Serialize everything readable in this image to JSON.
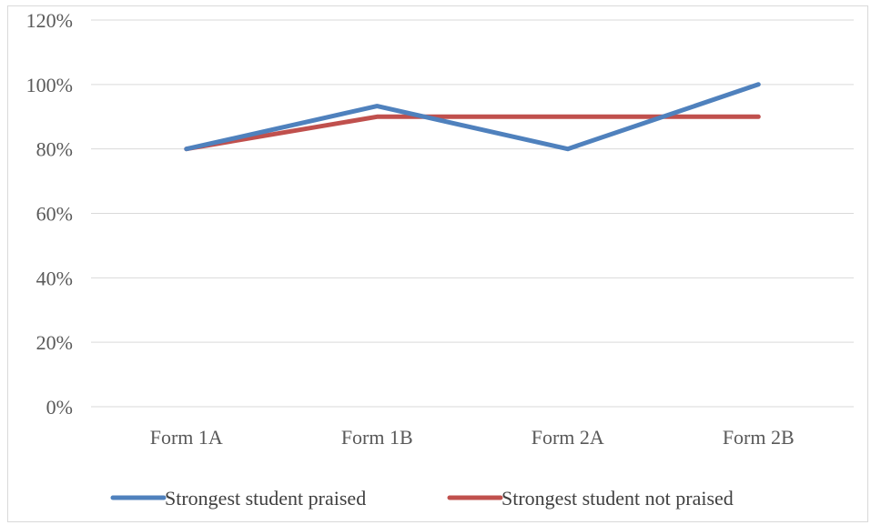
{
  "chart_data": {
    "type": "line",
    "title": "",
    "xlabel": "",
    "ylabel": "",
    "categories": [
      "Form 1A",
      "Form 1B",
      "Form 2A",
      "Form 2B"
    ],
    "ylim": [
      0,
      1.2
    ],
    "y_ticks": [
      0,
      0.2,
      0.4,
      0.6,
      0.8,
      1.0,
      1.2
    ],
    "y_tick_labels": [
      "0%",
      "20%",
      "40%",
      "60%",
      "80%",
      "100%",
      "120%"
    ],
    "grid": true,
    "legend_position": "bottom",
    "series": [
      {
        "name": "Strongest student praised",
        "values": [
          0.8,
          0.933,
          0.8,
          1.0
        ],
        "color": "#4f81bd"
      },
      {
        "name": "Strongest student not praised",
        "values": [
          0.8,
          0.9,
          0.9,
          0.9
        ],
        "color": "#c0504d"
      }
    ]
  }
}
